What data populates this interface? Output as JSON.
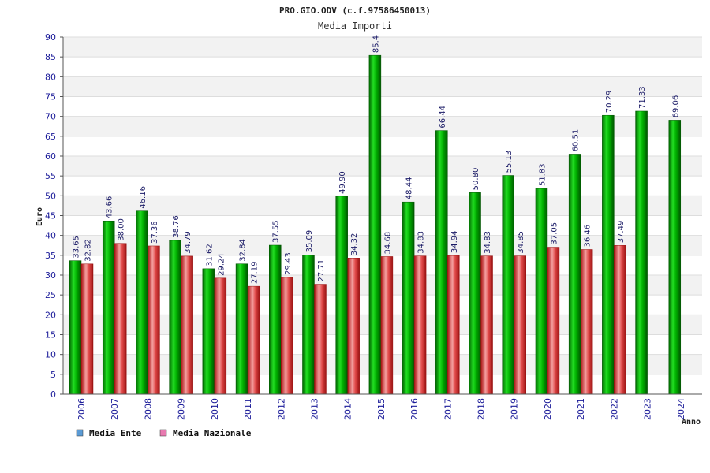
{
  "chart_data": {
    "type": "bar",
    "title": "PRO.GIO.ODV (c.f.97586450013)",
    "subtitle": "Media Importi",
    "xlabel": "Anno",
    "ylabel": "Euro",
    "ylim": [
      0,
      90
    ],
    "yticks": [
      "0",
      "5",
      "10",
      "15",
      "20",
      "25",
      "30",
      "35",
      "40",
      "45",
      "50",
      "55",
      "60",
      "65",
      "70",
      "75",
      "80",
      "85",
      "90"
    ],
    "grid": true,
    "legend_position": "bottom-left",
    "categories": [
      "2006",
      "2007",
      "2008",
      "2009",
      "2010",
      "2011",
      "2012",
      "2013",
      "2014",
      "2015",
      "2016",
      "2017",
      "2018",
      "2019",
      "2020",
      "2021",
      "2022",
      "2023",
      "2024"
    ],
    "series": [
      {
        "name": "Media Ente",
        "color": "#00aa00",
        "legend_color": "#5b9bd5",
        "values": [
          33.65,
          43.66,
          46.16,
          38.76,
          31.62,
          32.84,
          37.55,
          35.09,
          49.9,
          85.4,
          48.44,
          66.44,
          50.8,
          55.13,
          51.83,
          60.51,
          70.29,
          71.33,
          69.06
        ],
        "labels": [
          "33.65",
          "43.66",
          "46.16",
          "38.76",
          "31.62",
          "32.84",
          "37.55",
          "35.09",
          "49.90",
          "85.4",
          "48.44",
          "66.44",
          "50.80",
          "55.13",
          "51.83",
          "60.51",
          "70.29",
          "71.33",
          "69.06"
        ]
      },
      {
        "name": "Media Nazionale",
        "color": "#dd2222",
        "legend_color": "#e87ab0",
        "values": [
          32.82,
          38.0,
          37.36,
          34.79,
          29.24,
          27.19,
          29.43,
          27.71,
          34.32,
          34.68,
          34.83,
          34.94,
          34.83,
          34.85,
          37.05,
          36.46,
          37.49,
          null,
          null
        ],
        "labels": [
          "32.82",
          "38.00",
          "37.36",
          "34.79",
          "29.24",
          "27.19",
          "29.43",
          "27.71",
          "34.32",
          "34.68",
          "34.83",
          "34.94",
          "34.83",
          "34.85",
          "37.05",
          "36.46",
          "37.49",
          "",
          ""
        ]
      }
    ]
  }
}
